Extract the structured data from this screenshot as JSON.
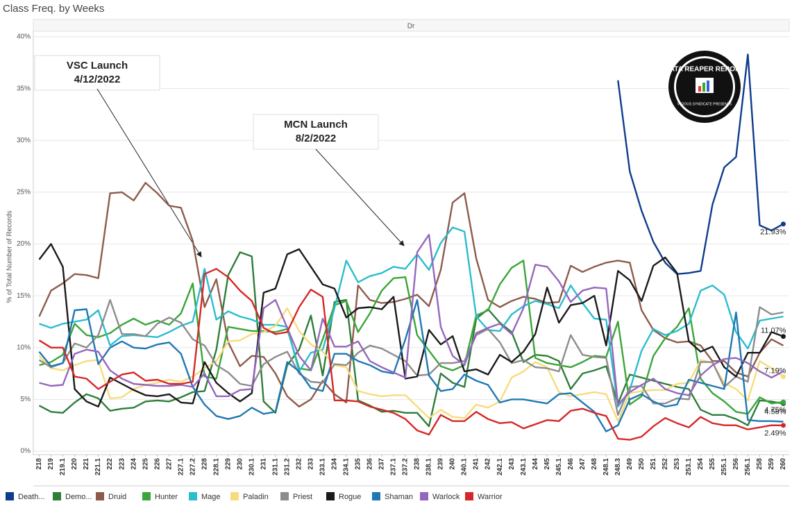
{
  "chart_data": {
    "type": "line",
    "title": "Class Freq. by Weeks",
    "pane_label": "Dr",
    "y_label": "% of Total Number of Records",
    "categories": [
      "218",
      "219",
      "219.1",
      "220",
      "221",
      "221.1",
      "222",
      "223",
      "224",
      "225",
      "226",
      "227",
      "227.1",
      "227.2",
      "228",
      "228.1",
      "229",
      "230",
      "230.1",
      "231",
      "231.1",
      "231.2",
      "232",
      "233",
      "233.1",
      "234",
      "234.1",
      "235",
      "236",
      "237",
      "237.1",
      "237.2",
      "238",
      "238.1",
      "239",
      "240",
      "240.1",
      "241",
      "242",
      "242.1",
      "243",
      "243.1",
      "244",
      "245",
      "245.1",
      "246",
      "247",
      "248",
      "248.1",
      "248.3",
      "249",
      "250",
      "251",
      "252",
      "253",
      "253.1",
      "254",
      "255",
      "255.1",
      "256",
      "256.1",
      "258",
      "259",
      "260"
    ],
    "ylim": [
      0,
      40
    ],
    "yticks": [
      {
        "value": 0,
        "label": "0%"
      },
      {
        "value": 5,
        "label": "5%"
      },
      {
        "value": 10,
        "label": "10%"
      },
      {
        "value": 15,
        "label": "15%"
      },
      {
        "value": 20,
        "label": "20%"
      },
      {
        "value": 25,
        "label": "25%"
      },
      {
        "value": 30,
        "label": "30%"
      },
      {
        "value": 35,
        "label": "35%"
      },
      {
        "value": 40,
        "label": "40%"
      }
    ],
    "grid": true,
    "annotations": [
      {
        "lines": [
          "VSC Launch",
          "4/12/2022"
        ]
      },
      {
        "lines": [
          "MCN Launch",
          "8/2/2022"
        ]
      }
    ],
    "logo": [
      "DATA REAPER REPORT",
      "VICIOUS SYNDICATE PRESENTS"
    ],
    "series": [
      {
        "name": "Death...",
        "color": "#0d3c8c",
        "end_label": "21.93%",
        "values": [
          null,
          null,
          null,
          null,
          null,
          null,
          null,
          null,
          null,
          null,
          null,
          null,
          null,
          null,
          null,
          null,
          null,
          null,
          null,
          null,
          null,
          null,
          null,
          null,
          null,
          null,
          null,
          null,
          null,
          null,
          null,
          null,
          null,
          null,
          null,
          null,
          null,
          null,
          null,
          null,
          null,
          null,
          null,
          null,
          null,
          null,
          null,
          null,
          null,
          35.8,
          27,
          23.2,
          20.2,
          18.2,
          17.1,
          17.2,
          17.4,
          23.8,
          27.4,
          28.4,
          38.3,
          21.8,
          21.3,
          21.93
        ]
      },
      {
        "name": "Demo...",
        "color": "#2e7d3a",
        "end_label": "4.58%",
        "values": [
          4.4,
          3.8,
          3.7,
          4.7,
          5.5,
          5.1,
          3.9,
          4.1,
          4.2,
          4.8,
          4.9,
          4.8,
          5.2,
          5.7,
          5.8,
          9.8,
          17,
          19.2,
          18.8,
          4.8,
          3.7,
          8.3,
          9.8,
          13.1,
          7.3,
          14.4,
          14.6,
          4.9,
          4.4,
          3.8,
          3.9,
          3.7,
          3.7,
          2.4,
          7.5,
          6.6,
          6.2,
          12.8,
          13.7,
          12.4,
          11.5,
          8.6,
          9.3,
          9.2,
          8.7,
          6,
          7.5,
          7.8,
          8.2,
          4.6,
          7.4,
          7.1,
          6.8,
          6.5,
          6.2,
          6,
          4,
          3.5,
          3.5,
          3.1,
          2.5,
          4.9,
          4.8,
          4.58
        ]
      },
      {
        "name": "Druid",
        "color": "#8d5b4c",
        "values": [
          13,
          15.5,
          16.2,
          17.1,
          17,
          16.7,
          24.9,
          25,
          24.2,
          25.9,
          24.9,
          23.7,
          23.5,
          20.3,
          13.9,
          16.6,
          10.5,
          8.2,
          9.2,
          9.1,
          7.5,
          5.3,
          4.3,
          5,
          6.8,
          5.5,
          4.7,
          16,
          14.6,
          14.3,
          14.4,
          14.7,
          15.1,
          14,
          17.5,
          24,
          24.9,
          18.6,
          14.6,
          13.9,
          14.5,
          14.9,
          14.7,
          14.3,
          14.4,
          17.9,
          17.3,
          17.8,
          18.2,
          18.4,
          18.2,
          13.6,
          11.7,
          10.9,
          10.5,
          10.6,
          10.2,
          8.7,
          8.7,
          7.6,
          7.2,
          9.5,
          10.8,
          10.2
        ]
      },
      {
        "name": "Hunter",
        "color": "#3aa538",
        "end_label": "4.75%",
        "values": [
          8.3,
          8.6,
          9.3,
          12.3,
          11.2,
          11,
          11.4,
          12.2,
          12.8,
          12.2,
          12.6,
          12.2,
          13.3,
          16.2,
          7.2,
          7,
          12,
          11.8,
          11.6,
          11.6,
          11.5,
          11.8,
          8,
          7.8,
          10.8,
          14.1,
          14.5,
          11.5,
          13.3,
          15.5,
          16.7,
          16.8,
          11.2,
          9.7,
          8.2,
          7.8,
          8.3,
          13.1,
          13.6,
          16.1,
          17.7,
          18.4,
          9,
          8.5,
          8.3,
          8.1,
          8.6,
          9.2,
          9.1,
          12.5,
          4.5,
          5.3,
          9.2,
          10.9,
          12,
          13.8,
          7,
          5.6,
          4.8,
          3.8,
          3.6,
          5.2,
          4.6,
          4.75
        ]
      },
      {
        "name": "Mage",
        "color": "#2bbccf",
        "values": [
          12.3,
          11.9,
          12.3,
          12.5,
          12.7,
          13.6,
          10.2,
          11.1,
          11.2,
          11.1,
          11,
          11.5,
          12.1,
          12.5,
          17.6,
          12.7,
          13.5,
          13,
          12.7,
          12.2,
          12.2,
          12,
          7.7,
          9.5,
          9.8,
          13.8,
          18.4,
          16.3,
          16.9,
          17.2,
          17.8,
          17.6,
          19,
          17.5,
          20.1,
          21.6,
          21.2,
          13,
          11.7,
          11.6,
          13.2,
          14,
          14.5,
          14.2,
          13.8,
          16,
          14.3,
          12.8,
          12.7,
          4.3,
          5.9,
          9.7,
          11.8,
          11.2,
          11.6,
          12.3,
          15.5,
          16,
          15.1,
          11.5,
          9.9,
          12.6,
          12.8,
          13
        ]
      },
      {
        "name": "Paladin",
        "color": "#f6dc7c",
        "end_label": "7.19%",
        "values": [
          9.2,
          8,
          7.8,
          8.3,
          8.7,
          8.8,
          5.1,
          5.2,
          6,
          6.4,
          6.6,
          6.9,
          6.7,
          7.2,
          8,
          8.7,
          10.6,
          10.7,
          11.3,
          11.5,
          12.1,
          13.8,
          11.6,
          10.3,
          9.6,
          8.3,
          8.1,
          5.8,
          5.5,
          5.3,
          5.4,
          5.4,
          4.3,
          3.2,
          4,
          3.3,
          3.2,
          4.5,
          4.2,
          4.8,
          7.1,
          7.7,
          8.6,
          8.1,
          5.7,
          5.3,
          5.5,
          5.7,
          5.5,
          2.9,
          5.6,
          5.8,
          5.9,
          5.9,
          6.5,
          6.6,
          8.8,
          8.5,
          6.6,
          6,
          4.9,
          8.7,
          8,
          7.19
        ]
      },
      {
        "name": "Priest",
        "color": "#8c8c8c",
        "values": [
          8.8,
          8.1,
          8.5,
          10.4,
          10,
          11.2,
          14.6,
          11.3,
          11.3,
          11.1,
          12.3,
          12.9,
          12.4,
          10.8,
          10.2,
          8.3,
          7.6,
          6.5,
          6.3,
          8.4,
          9.1,
          9.6,
          7.5,
          6.7,
          6.6,
          8.4,
          8.3,
          9.5,
          10.2,
          9.9,
          9.3,
          8.7,
          7.3,
          7.4,
          8.5,
          8.5,
          8.7,
          11.2,
          11.8,
          10.5,
          8.5,
          8.8,
          8.1,
          8,
          7.7,
          11.2,
          9.3,
          9.1,
          9,
          3.5,
          6.2,
          6.3,
          4.6,
          4.6,
          5.1,
          5,
          8.6,
          8.6,
          6.2,
          7.2,
          6.7,
          13.9,
          13.2,
          13.4
        ]
      },
      {
        "name": "Rogue",
        "color": "#1a1a1a",
        "end_label": "11.07%",
        "values": [
          18.5,
          20,
          17.8,
          6,
          4.8,
          4.3,
          7.1,
          6.5,
          5.9,
          5.4,
          5.3,
          5.5,
          4.7,
          4.6,
          8.6,
          6.6,
          5.6,
          4.8,
          5.6,
          15.3,
          15.7,
          19,
          19.5,
          17.8,
          16.1,
          15.7,
          12.9,
          13.8,
          13.9,
          13.7,
          14.9,
          7,
          7.2,
          11.7,
          10.3,
          11.1,
          7.7,
          7.9,
          7.4,
          9.3,
          8.6,
          9.6,
          11.3,
          15.8,
          12.4,
          14.1,
          14.3,
          15,
          10.2,
          17.4,
          16.5,
          14.5,
          17.9,
          18.7,
          17.2,
          10.6,
          9.6,
          10.1,
          8.1,
          7.2,
          9.5,
          9.5,
          11.5,
          11.07
        ]
      },
      {
        "name": "Shaman",
        "color": "#1f77b4",
        "values": [
          9.6,
          8.2,
          8.5,
          13.6,
          13.7,
          8.4,
          10,
          10.6,
          10,
          9.9,
          10.3,
          10.5,
          9.4,
          6.2,
          4.5,
          3.4,
          3.1,
          3.4,
          4.2,
          3.6,
          3.8,
          8.6,
          7.7,
          6.1,
          5.8,
          9.4,
          9.4,
          8.7,
          8.3,
          7.7,
          7.5,
          10.8,
          14.6,
          7.3,
          5.8,
          6,
          7.4,
          6.8,
          6.4,
          4.7,
          5,
          5,
          4.8,
          4.6,
          5.5,
          5.6,
          4.7,
          3.8,
          1.9,
          2.5,
          5,
          5.5,
          4.8,
          4.3,
          4.5,
          6.9,
          6.6,
          6.3,
          6,
          13.4,
          3,
          2.9,
          2.9,
          2.85
        ]
      },
      {
        "name": "Warlock",
        "color": "#9467bd",
        "values": [
          6.6,
          6.3,
          6.4,
          9.4,
          9.8,
          9.6,
          7.8,
          7,
          6.5,
          6.4,
          6.3,
          6.3,
          6.4,
          6.2,
          7.5,
          5.3,
          5.3,
          5.9,
          6,
          13.8,
          14.6,
          11.9,
          9.2,
          7.8,
          12.8,
          10.1,
          10.1,
          10.6,
          8.7,
          8.1,
          7.6,
          7.1,
          19.2,
          20.9,
          12,
          9.2,
          8.3,
          11.4,
          11.9,
          12.3,
          11.3,
          13.8,
          18,
          17.8,
          16.4,
          14.4,
          15.5,
          15.8,
          15.7,
          4.5,
          5.7,
          6.4,
          7,
          6,
          5.6,
          5.4,
          7.3,
          8.3,
          8.9,
          9,
          8.5,
          7.7,
          7.1,
          7.7
        ]
      },
      {
        "name": "Warrior",
        "color": "#d62728",
        "end_label": "2.49%",
        "values": [
          10.7,
          10,
          10,
          7.2,
          7,
          6,
          6.7,
          7.4,
          7.6,
          6.8,
          6.9,
          6.5,
          6.5,
          6.7,
          17.1,
          17.6,
          16.8,
          15.5,
          14.5,
          11.9,
          11.3,
          11.5,
          13.9,
          15.6,
          14.9,
          4.9,
          4.9,
          4.8,
          4.3,
          4,
          3.7,
          3.1,
          2,
          1.6,
          3.5,
          2.9,
          2.9,
          3.8,
          3.1,
          2.7,
          2.8,
          2.2,
          2.6,
          3,
          2.9,
          3.9,
          4.1,
          3.7,
          3.4,
          1.2,
          1.1,
          1.4,
          2.4,
          3.2,
          2.7,
          2.3,
          3.3,
          2.7,
          2.5,
          2.5,
          2.1,
          2.3,
          2.5,
          2.49
        ]
      }
    ]
  }
}
